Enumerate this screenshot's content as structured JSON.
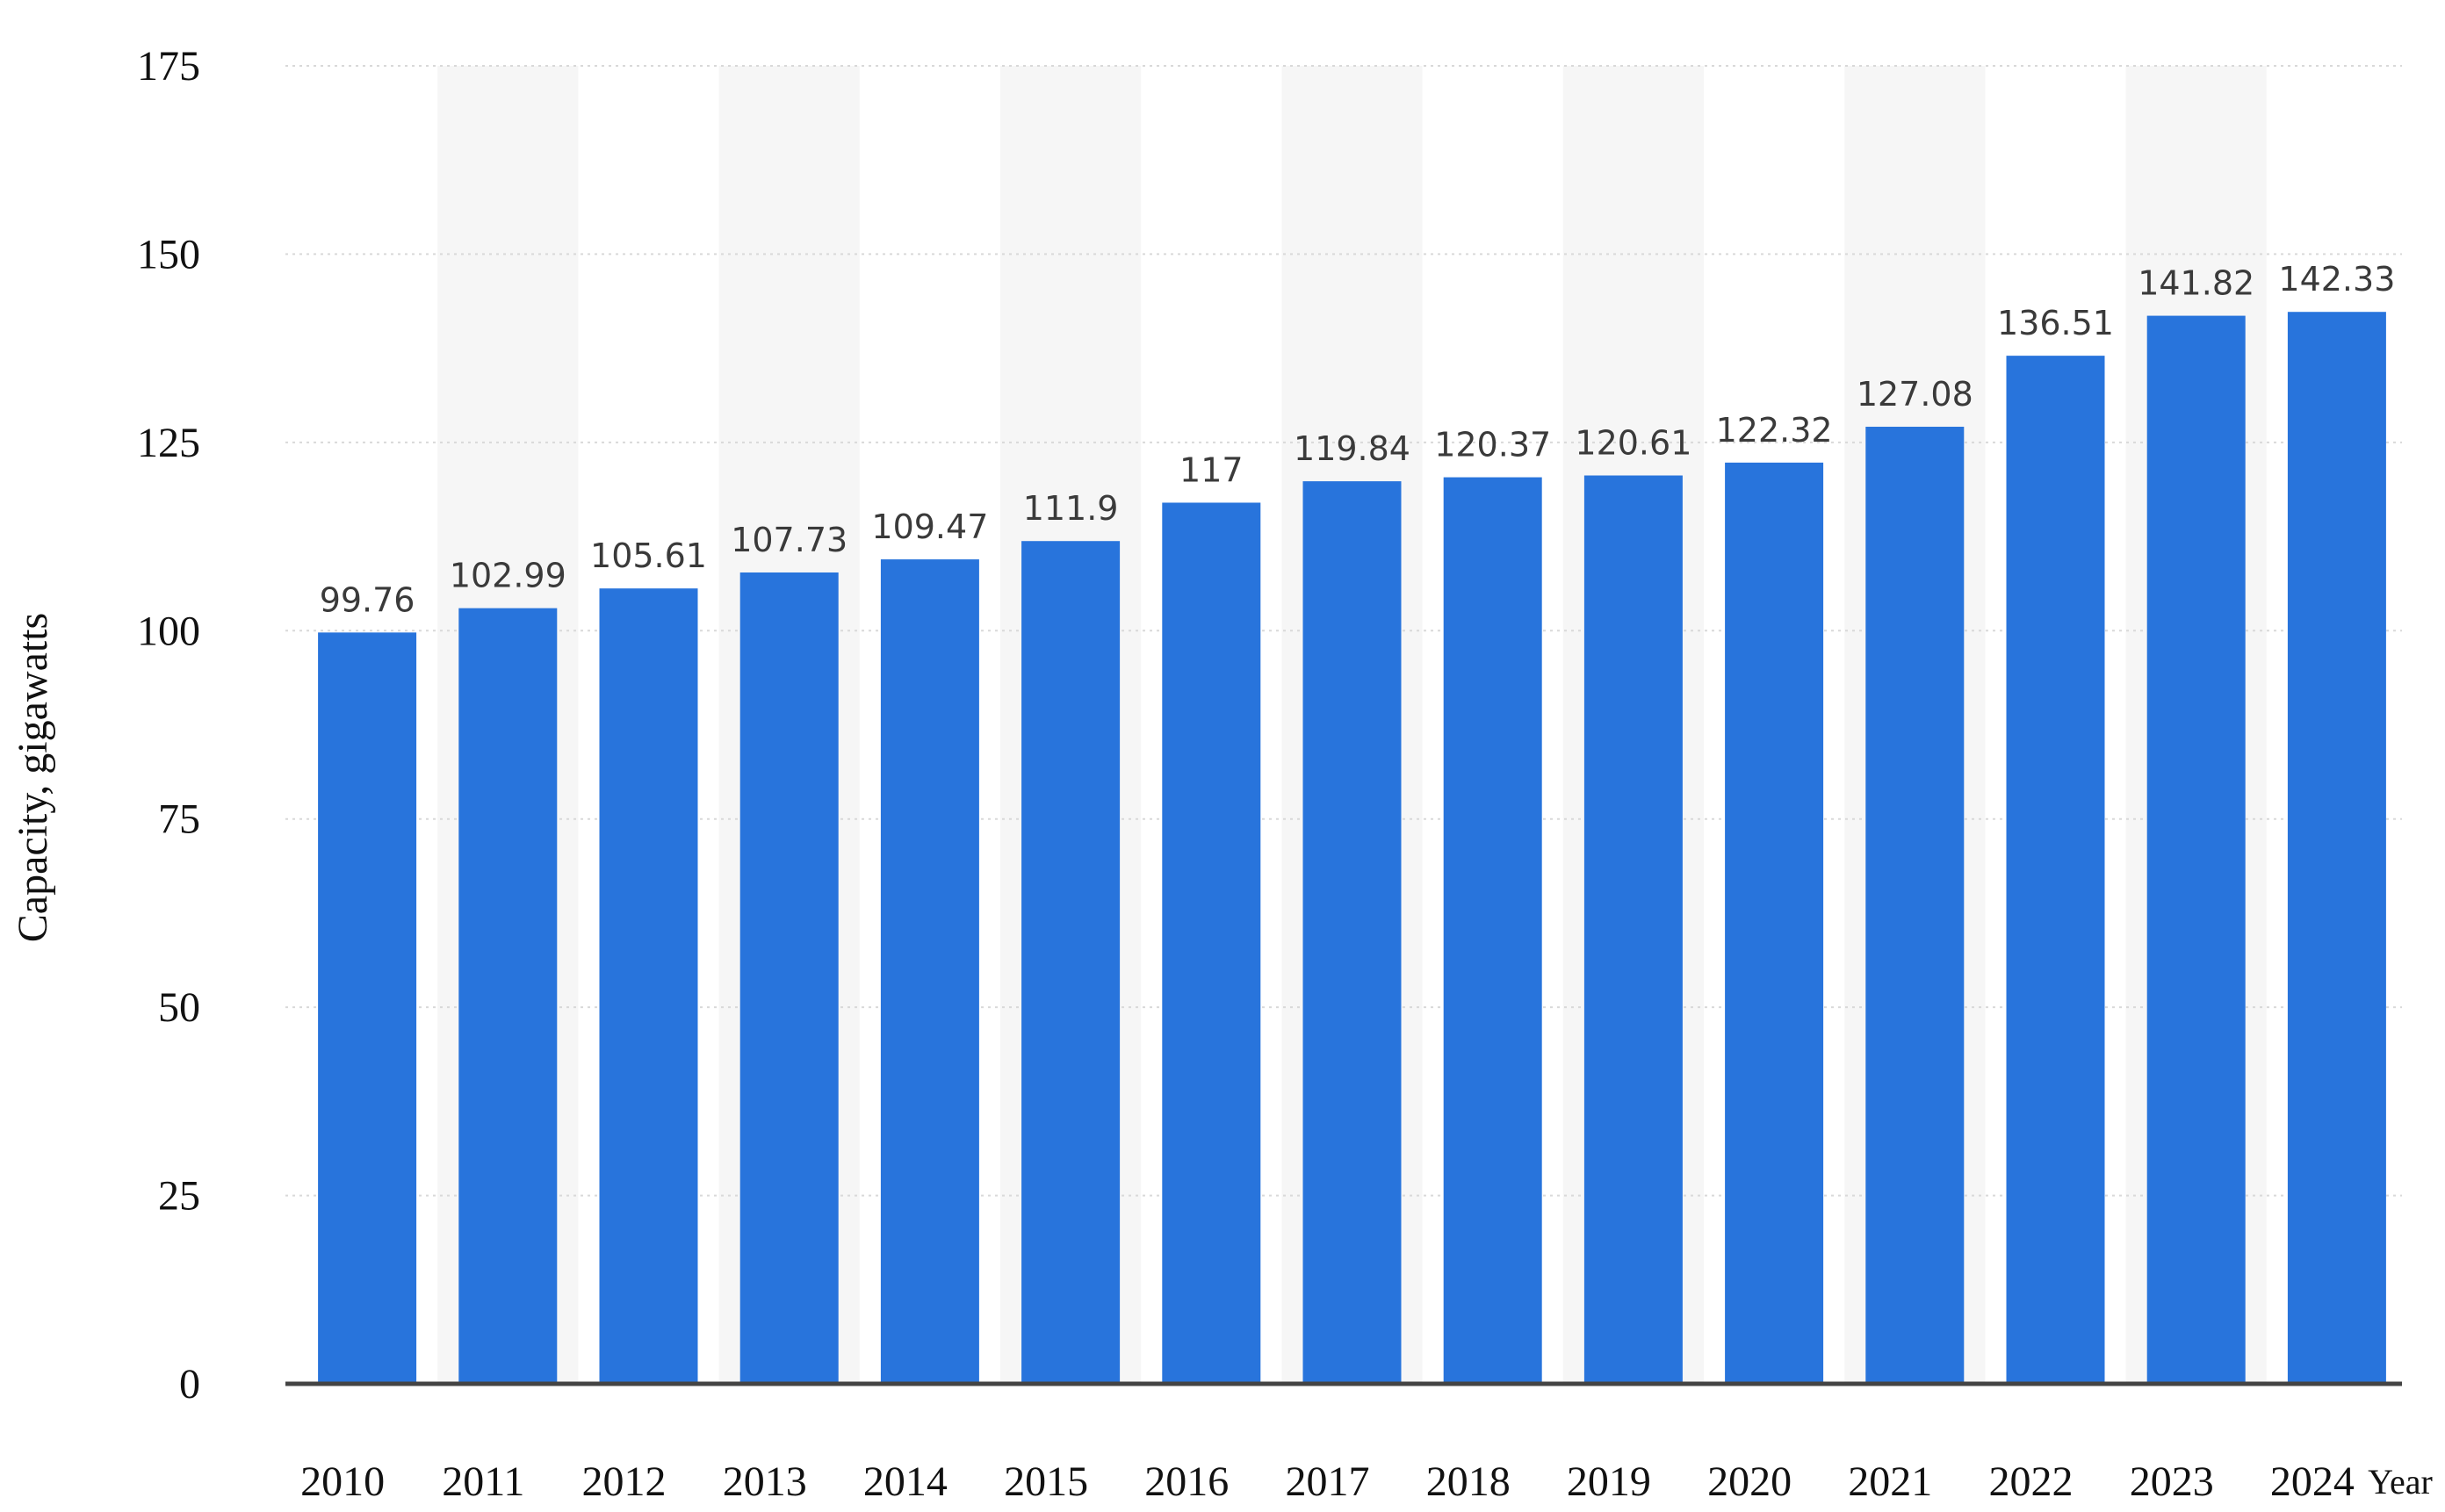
{
  "chart_data": {
    "type": "bar",
    "categories": [
      "2010",
      "2011",
      "2012",
      "2013",
      "2014",
      "2015",
      "2016",
      "2017",
      "2018",
      "2019",
      "2020",
      "2021",
      "2022",
      "2023",
      "2024"
    ],
    "values": [
      99.76,
      102.99,
      105.61,
      107.73,
      109.47,
      111.9,
      117,
      119.84,
      120.37,
      120.61,
      122.32,
      127.08,
      136.51,
      141.82,
      142.33
    ],
    "value_labels": [
      "99.76",
      "102.99",
      "105.61",
      "107.73",
      "109.47",
      "111.9",
      "117",
      "119.84",
      "120.37",
      "120.61",
      "122.32",
      "127.08",
      "136.51",
      "141.82",
      "142.33"
    ],
    "title": "",
    "xlabel": "Year",
    "ylabel": "Capacity, gigawatts",
    "ylim": [
      0,
      175
    ],
    "yticks": [
      0,
      25,
      50,
      75,
      100,
      125,
      150,
      175
    ],
    "grid": true,
    "bar_color": "#2874dc"
  }
}
